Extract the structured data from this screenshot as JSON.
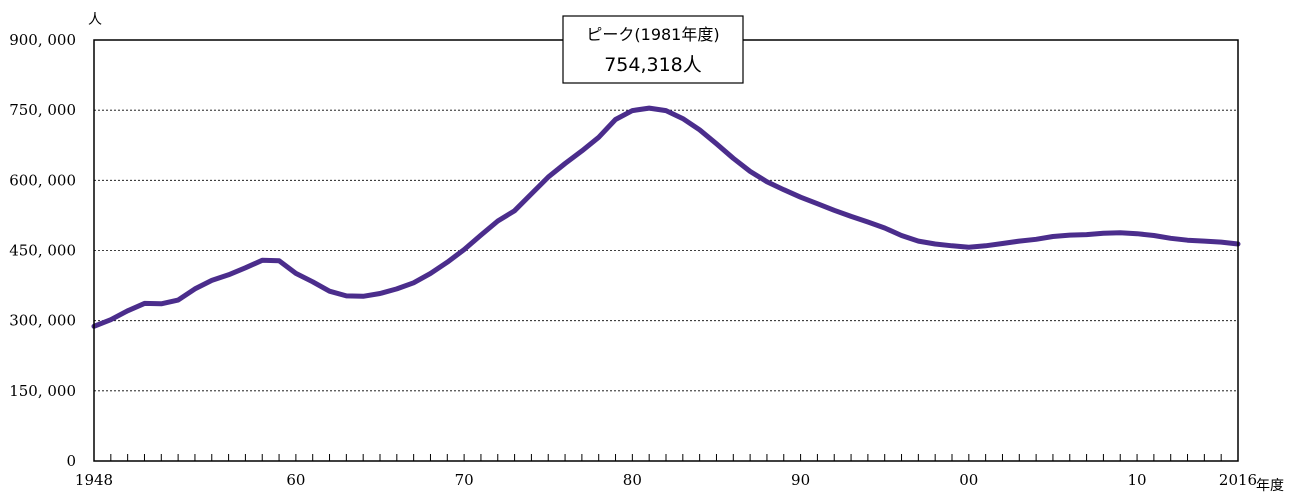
{
  "chart_data": {
    "type": "line",
    "title": "",
    "xlabel": "年度",
    "ylabel": "人",
    "ylim": [
      0,
      900000
    ],
    "xlim": [
      1948,
      2016
    ],
    "yticks": [
      0,
      150000,
      300000,
      450000,
      600000,
      750000,
      900000
    ],
    "ytick_labels": [
      "0",
      "150, 000",
      "300, 000",
      "450, 000",
      "600, 000",
      "750, 000",
      "900, 000"
    ],
    "xticks": [
      1948,
      1960,
      1970,
      1980,
      1990,
      2000,
      2010,
      2016
    ],
    "xtick_labels": [
      "1948",
      "60",
      "70",
      "80",
      "90",
      "00",
      "10",
      "2016"
    ],
    "grid": true,
    "series_color": "#4b2d8c",
    "x": [
      1948,
      1949,
      1950,
      1951,
      1952,
      1953,
      1954,
      1955,
      1956,
      1957,
      1958,
      1959,
      1960,
      1961,
      1962,
      1963,
      1964,
      1965,
      1966,
      1967,
      1968,
      1969,
      1970,
      1971,
      1972,
      1973,
      1974,
      1975,
      1976,
      1977,
      1978,
      1979,
      1980,
      1981,
      1982,
      1983,
      1984,
      1985,
      1986,
      1987,
      1988,
      1989,
      1990,
      1991,
      1992,
      1993,
      1994,
      1995,
      1996,
      1997,
      1998,
      1999,
      2000,
      2001,
      2002,
      2003,
      2004,
      2005,
      2006,
      2007,
      2008,
      2009,
      2010,
      2011,
      2012,
      2013,
      2014,
      2015,
      2016
    ],
    "series": [
      {
        "values": [
          288000,
          302000,
          321000,
          337000,
          336000,
          344000,
          368000,
          386000,
          398000,
          413000,
          429000,
          428000,
          401000,
          383000,
          363000,
          353000,
          352000,
          358000,
          368000,
          381000,
          401000,
          425000,
          452000,
          483000,
          513000,
          535000,
          571000,
          607000,
          636000,
          663000,
          692000,
          730000,
          749000,
          754318,
          749000,
          732000,
          708000,
          678000,
          647000,
          619000,
          597000,
          580000,
          564000,
          550000,
          536000,
          523000,
          511000,
          498000,
          482000,
          470000,
          464000,
          460000,
          457000,
          460000,
          465000,
          470000,
          474000,
          480000,
          483000,
          484000,
          487000,
          488000,
          486000,
          482000,
          476000,
          472000,
          470000,
          468000,
          464000
        ]
      }
    ],
    "annotation": {
      "line1": "ピーク(1981年度)",
      "line2": "754,318人"
    }
  }
}
